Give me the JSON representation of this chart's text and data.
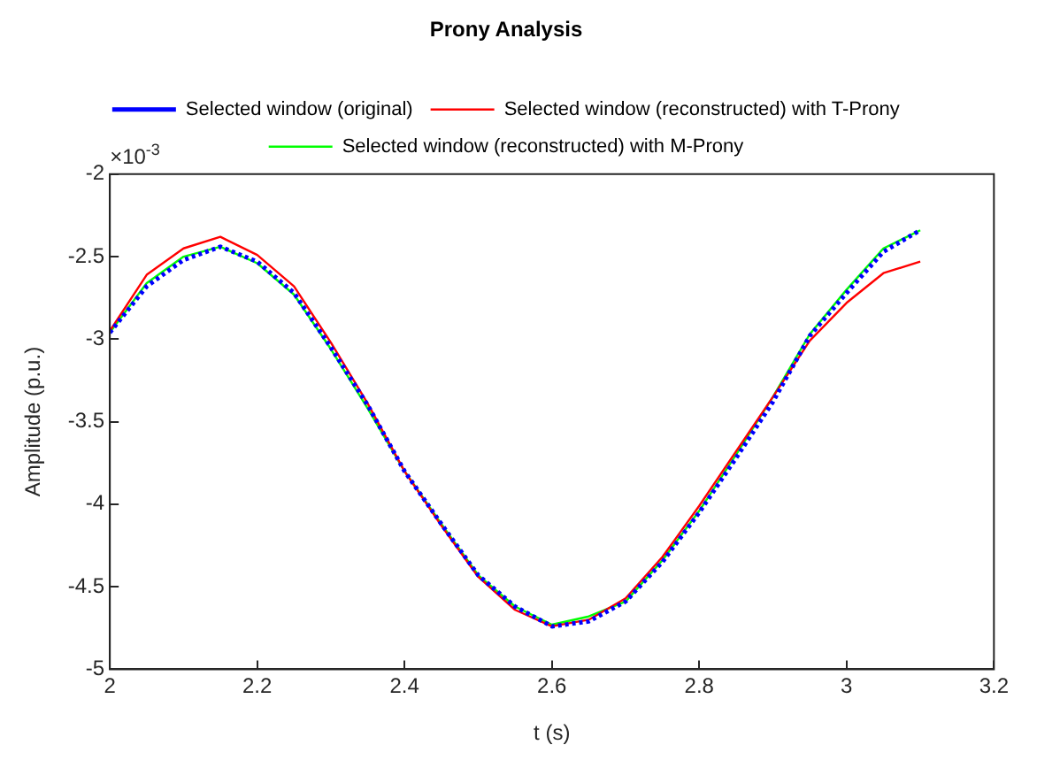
{
  "chart_data": {
    "type": "line",
    "title": "Prony Analysis",
    "xlabel": "t (s)",
    "ylabel": "Amplitude (p.u.)",
    "annotations": [
      "×10$^{-3}$"
    ],
    "x": [
      2,
      2.05,
      2.1,
      2.15,
      2.2,
      2.25,
      2.3,
      2.35,
      2.4,
      2.45,
      2.5,
      2.55,
      2.6,
      2.65,
      2.7,
      2.75,
      2.8,
      2.85,
      2.9,
      2.95,
      3,
      3.05,
      3.1
    ],
    "series": [
      {
        "name": "Selected window (original)",
        "color": "#0000ff",
        "line_style": "dotted",
        "values": [
          -2.96,
          -2.68,
          -2.52,
          -2.44,
          -2.53,
          -2.72,
          -3.05,
          -3.4,
          -3.8,
          -4.12,
          -4.43,
          -4.62,
          -4.74,
          -4.71,
          -4.59,
          -4.35,
          -4.05,
          -3.72,
          -3.38,
          -2.98,
          -2.72,
          -2.47,
          -2.34
        ]
      },
      {
        "name": "Selected window (reconstructed) with T-Prony",
        "color": "#ff0000",
        "line_style": "solid",
        "values": [
          -2.95,
          -2.61,
          -2.45,
          -2.38,
          -2.49,
          -2.68,
          -3.02,
          -3.39,
          -3.8,
          -4.13,
          -4.44,
          -4.64,
          -4.74,
          -4.7,
          -4.57,
          -4.32,
          -4.01,
          -3.68,
          -3.35,
          -3.01,
          -2.78,
          -2.6,
          -2.53
        ]
      },
      {
        "name": "Selected window (reconstructed) with M-Prony",
        "color": "#00ff00",
        "line_style": "solid",
        "values": [
          -2.96,
          -2.66,
          -2.5,
          -2.44,
          -2.54,
          -2.73,
          -3.06,
          -3.42,
          -3.8,
          -4.12,
          -4.43,
          -4.62,
          -4.73,
          -4.68,
          -4.59,
          -4.34,
          -4.04,
          -3.7,
          -3.35,
          -2.97,
          -2.7,
          -2.45,
          -2.34
        ]
      }
    ],
    "xlim": [
      2,
      3.2
    ],
    "xticks": [
      2,
      2.2,
      2.4,
      2.6,
      2.8,
      3,
      3.2
    ],
    "ylim": [
      -5,
      -2
    ],
    "yticks": [
      -5,
      -4.5,
      -4,
      -3.5,
      -3,
      -2.5,
      -2
    ],
    "grid": false,
    "legend": "top",
    "marker": "none"
  }
}
